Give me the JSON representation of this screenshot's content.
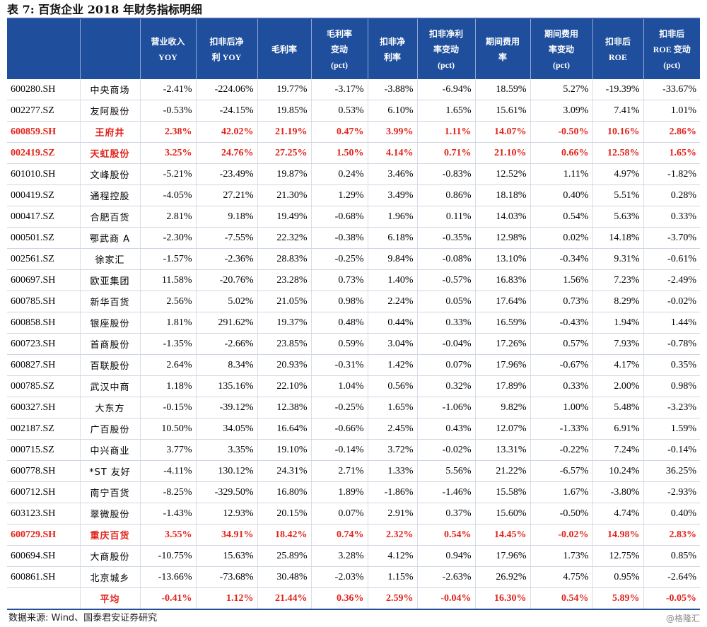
{
  "title": "表 7:  百货企业 2018 年财务指标明细",
  "headers": [
    "",
    "",
    "营业收入\nYOY",
    "扣非后净\n利 YOY",
    "毛利率",
    "毛利率\n变动\n(pct)",
    "扣非净\n利率",
    "扣非净利\n率变动\n(pct)",
    "期间费用\n率",
    "期间费用\n率变动\n(pct)",
    "扣非后\nROE",
    "扣非后\nROE 变动\n(pct)"
  ],
  "rows": [
    {
      "code": "600280.SH",
      "name": "中央商场",
      "values": [
        "-2.41%",
        "-224.06%",
        "19.77%",
        "-3.17%",
        "-3.88%",
        "-6.94%",
        "18.59%",
        "5.27%",
        "-19.39%",
        "-33.67%"
      ]
    },
    {
      "code": "002277.SZ",
      "name": "友阿股份",
      "values": [
        "-0.53%",
        "-24.15%",
        "19.85%",
        "0.53%",
        "6.10%",
        "1.65%",
        "15.61%",
        "3.09%",
        "7.41%",
        "1.01%"
      ]
    },
    {
      "code": "600859.SH",
      "name": "王府井",
      "highlight": true,
      "values": [
        "2.38%",
        "42.02%",
        "21.19%",
        "0.47%",
        "3.99%",
        "1.11%",
        "14.07%",
        "-0.50%",
        "10.16%",
        "2.86%"
      ]
    },
    {
      "code": "002419.SZ",
      "name": "天虹股份",
      "highlight": true,
      "values": [
        "3.25%",
        "24.76%",
        "27.25%",
        "1.50%",
        "4.14%",
        "0.71%",
        "21.10%",
        "0.66%",
        "12.58%",
        "1.65%"
      ]
    },
    {
      "code": "601010.SH",
      "name": "文峰股份",
      "values": [
        "-5.21%",
        "-23.49%",
        "19.87%",
        "0.24%",
        "3.46%",
        "-0.83%",
        "12.52%",
        "1.11%",
        "4.97%",
        "-1.82%"
      ]
    },
    {
      "code": "000419.SZ",
      "name": "通程控股",
      "values": [
        "-4.05%",
        "27.21%",
        "21.30%",
        "1.29%",
        "3.49%",
        "0.86%",
        "18.18%",
        "0.40%",
        "5.51%",
        "0.28%"
      ]
    },
    {
      "code": "000417.SZ",
      "name": "合肥百货",
      "values": [
        "2.81%",
        "9.18%",
        "19.49%",
        "-0.68%",
        "1.96%",
        "0.11%",
        "14.03%",
        "0.54%",
        "5.63%",
        "0.33%"
      ]
    },
    {
      "code": "000501.SZ",
      "name": "鄂武商 A",
      "values": [
        "-2.30%",
        "-7.55%",
        "22.32%",
        "-0.38%",
        "6.18%",
        "-0.35%",
        "12.98%",
        "0.02%",
        "14.18%",
        "-3.70%"
      ]
    },
    {
      "code": "002561.SZ",
      "name": "徐家汇",
      "values": [
        "-1.57%",
        "-2.36%",
        "28.83%",
        "-0.25%",
        "9.84%",
        "-0.08%",
        "13.10%",
        "-0.34%",
        "9.31%",
        "-0.61%"
      ]
    },
    {
      "code": "600697.SH",
      "name": "欧亚集团",
      "values": [
        "11.58%",
        "-20.76%",
        "23.28%",
        "0.73%",
        "1.40%",
        "-0.57%",
        "16.83%",
        "1.56%",
        "7.23%",
        "-2.49%"
      ]
    },
    {
      "code": "600785.SH",
      "name": "新华百货",
      "values": [
        "2.56%",
        "5.02%",
        "21.05%",
        "0.98%",
        "2.24%",
        "0.05%",
        "17.64%",
        "0.73%",
        "8.29%",
        "-0.02%"
      ]
    },
    {
      "code": "600858.SH",
      "name": "银座股份",
      "values": [
        "1.81%",
        "291.62%",
        "19.37%",
        "0.48%",
        "0.44%",
        "0.33%",
        "16.59%",
        "-0.43%",
        "1.94%",
        "1.44%"
      ]
    },
    {
      "code": "600723.SH",
      "name": "首商股份",
      "values": [
        "-1.35%",
        "-2.66%",
        "23.85%",
        "0.59%",
        "3.04%",
        "-0.04%",
        "17.26%",
        "0.57%",
        "7.93%",
        "-0.78%"
      ]
    },
    {
      "code": "600827.SH",
      "name": "百联股份",
      "values": [
        "2.64%",
        "8.34%",
        "20.93%",
        "-0.31%",
        "1.42%",
        "0.07%",
        "17.96%",
        "-0.67%",
        "4.17%",
        "0.35%"
      ]
    },
    {
      "code": "000785.SZ",
      "name": "武汉中商",
      "values": [
        "1.18%",
        "135.16%",
        "22.10%",
        "1.04%",
        "0.56%",
        "0.32%",
        "17.89%",
        "0.33%",
        "2.00%",
        "0.98%"
      ]
    },
    {
      "code": "600327.SH",
      "name": "大东方",
      "values": [
        "-0.15%",
        "-39.12%",
        "12.38%",
        "-0.25%",
        "1.65%",
        "-1.06%",
        "9.82%",
        "1.00%",
        "5.48%",
        "-3.23%"
      ]
    },
    {
      "code": "002187.SZ",
      "name": "广百股份",
      "values": [
        "10.50%",
        "34.05%",
        "16.64%",
        "-0.66%",
        "2.45%",
        "0.43%",
        "12.07%",
        "-1.33%",
        "6.91%",
        "1.59%"
      ]
    },
    {
      "code": "000715.SZ",
      "name": "中兴商业",
      "values": [
        "3.77%",
        "3.35%",
        "19.10%",
        "-0.14%",
        "3.72%",
        "-0.02%",
        "13.31%",
        "-0.22%",
        "7.24%",
        "-0.14%"
      ]
    },
    {
      "code": "600778.SH",
      "name": "*ST 友好",
      "values": [
        "-4.11%",
        "130.12%",
        "24.31%",
        "2.71%",
        "1.33%",
        "5.56%",
        "21.22%",
        "-6.57%",
        "10.24%",
        "36.25%"
      ]
    },
    {
      "code": "600712.SH",
      "name": "南宁百货",
      "values": [
        "-8.25%",
        "-329.50%",
        "16.80%",
        "1.89%",
        "-1.86%",
        "-1.46%",
        "15.58%",
        "1.67%",
        "-3.80%",
        "-2.93%"
      ]
    },
    {
      "code": "603123.SH",
      "name": "翠微股份",
      "values": [
        "-1.43%",
        "12.93%",
        "20.15%",
        "0.07%",
        "2.91%",
        "0.37%",
        "15.60%",
        "-0.50%",
        "4.74%",
        "0.40%"
      ]
    },
    {
      "code": "600729.SH",
      "name": "重庆百货",
      "highlight": true,
      "values": [
        "3.55%",
        "34.91%",
        "18.42%",
        "0.74%",
        "2.32%",
        "0.54%",
        "14.45%",
        "-0.02%",
        "14.98%",
        "2.83%"
      ]
    },
    {
      "code": "600694.SH",
      "name": "大商股份",
      "values": [
        "-10.75%",
        "15.63%",
        "25.89%",
        "3.28%",
        "4.12%",
        "0.94%",
        "17.96%",
        "1.73%",
        "12.75%",
        "0.85%"
      ]
    },
    {
      "code": "600861.SH",
      "name": "北京城乡",
      "values": [
        "-13.66%",
        "-73.68%",
        "30.48%",
        "-2.03%",
        "1.15%",
        "-2.63%",
        "26.92%",
        "4.75%",
        "0.95%",
        "-2.64%"
      ]
    }
  ],
  "average": {
    "label": "平均",
    "values": [
      "-0.41%",
      "1.12%",
      "21.44%",
      "0.36%",
      "2.59%",
      "-0.04%",
      "16.30%",
      "0.54%",
      "5.89%",
      "-0.05%"
    ]
  },
  "source": "数据来源: Wind、国泰君安证券研究",
  "watermark": "@格隆汇",
  "colors": {
    "header_bg": "#1f4f9c",
    "highlight_text": "#e2231a"
  }
}
